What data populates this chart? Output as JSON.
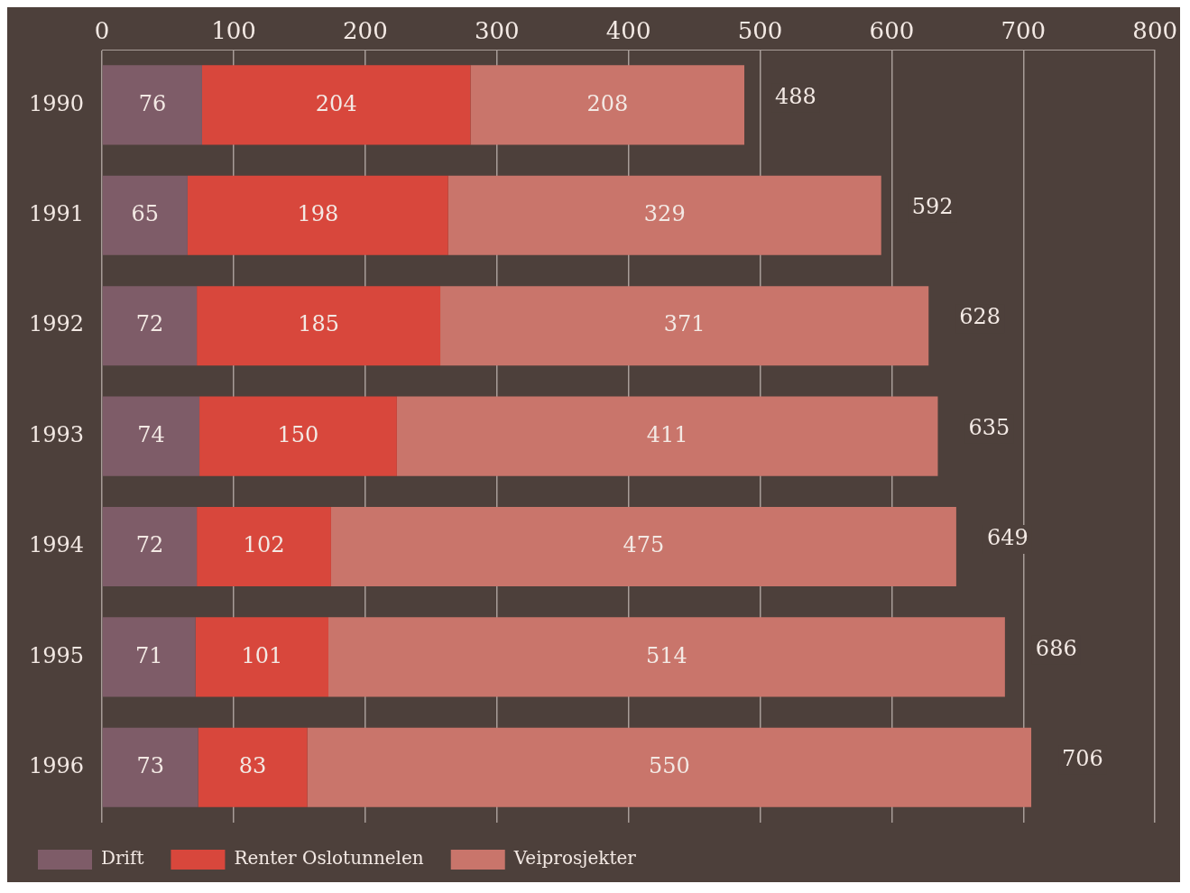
{
  "chart_data": {
    "type": "bar",
    "orientation": "horizontal",
    "stacked": true,
    "categories": [
      "1990",
      "1991",
      "1992",
      "1993",
      "1994",
      "1995",
      "1996"
    ],
    "series": [
      {
        "name": "Drift",
        "color": "#7e5c68",
        "values": [
          76,
          65,
          72,
          74,
          72,
          71,
          73
        ]
      },
      {
        "name": "Renter Oslotunnelen",
        "color": "#d8473c",
        "values": [
          204,
          198,
          185,
          150,
          102,
          101,
          83
        ]
      },
      {
        "name": "Veiprosjekter",
        "color": "#c9756b",
        "values": [
          208,
          329,
          371,
          411,
          475,
          514,
          550
        ]
      }
    ],
    "xlim": [
      0,
      800
    ],
    "xticks": [
      0,
      100,
      200,
      300,
      400,
      500,
      600,
      700,
      800
    ],
    "grid": "x",
    "legend": "bottom",
    "data_labels": true,
    "totals": [
      "488",
      "592",
      "628",
      "635",
      "649",
      "686",
      "706"
    ]
  }
}
